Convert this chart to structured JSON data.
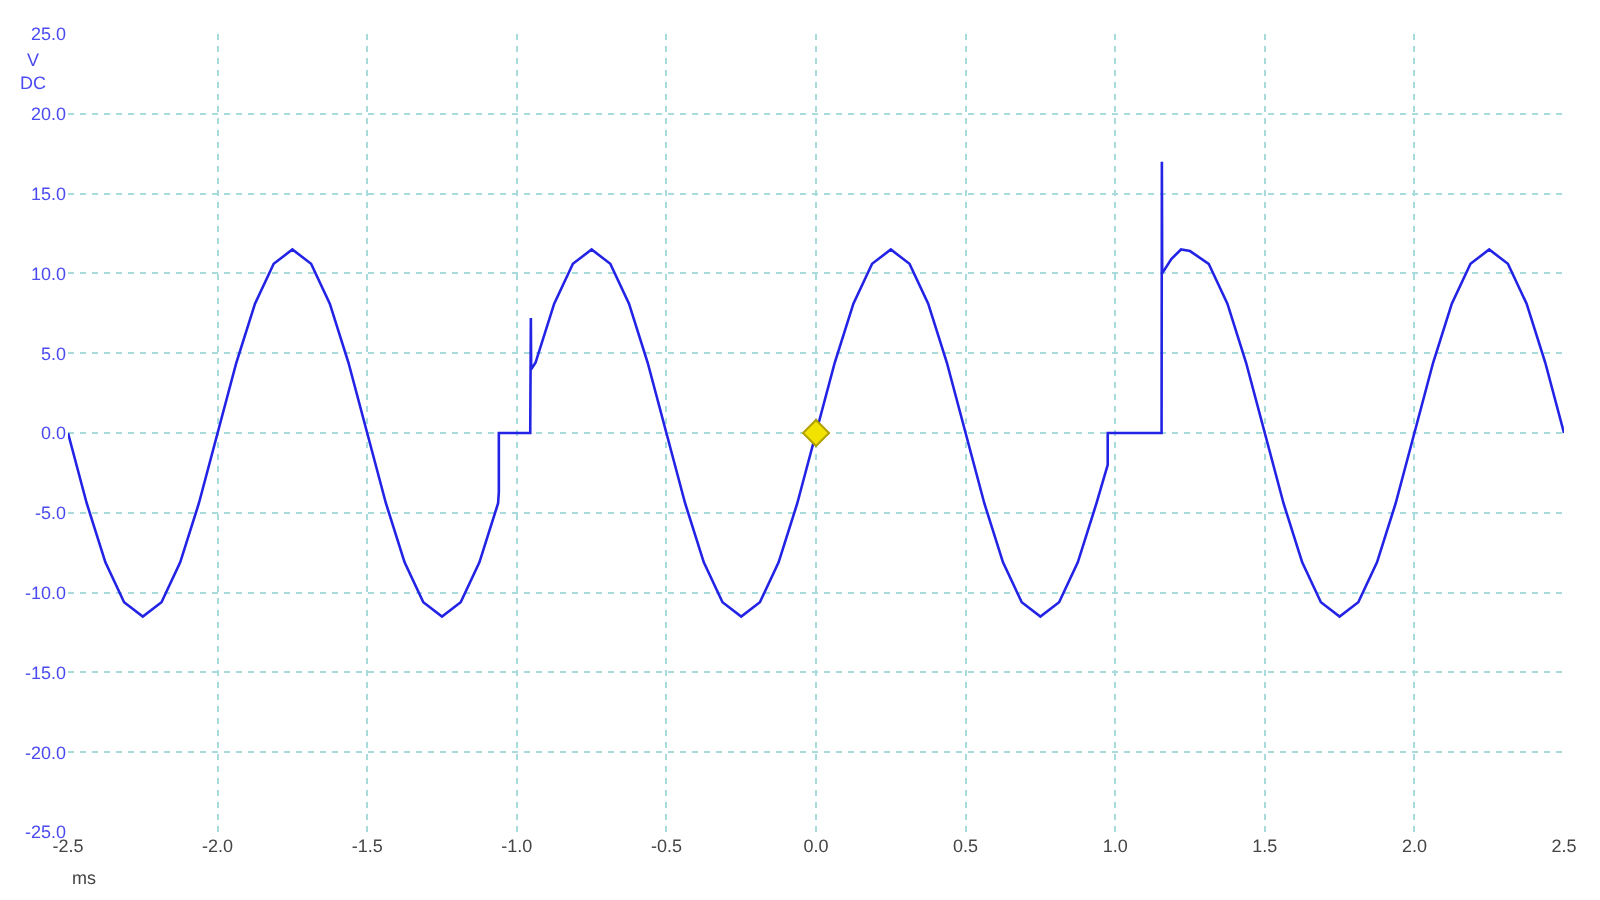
{
  "chart_data": {
    "type": "line",
    "xlabel": "ms",
    "ylabel": "V\nDC",
    "xlim": [
      -2.5,
      2.5
    ],
    "xticks": [
      {
        "value": -2.5,
        "label": "-2.5"
      },
      {
        "value": -2.0,
        "label": "-2.0"
      },
      {
        "value": -1.5,
        "label": "-1.5"
      },
      {
        "value": -1.0,
        "label": "-1.0"
      },
      {
        "value": -0.5,
        "label": "-0.5"
      },
      {
        "value": 0,
        "label": "0.0"
      },
      {
        "value": 0.5,
        "label": "0.5"
      },
      {
        "value": 1.0,
        "label": "1.0"
      },
      {
        "value": 1.5,
        "label": "1.5"
      },
      {
        "value": 2.0,
        "label": "2.0"
      },
      {
        "value": 2.5,
        "label": "2.5"
      }
    ],
    "ylim": [
      -25,
      25
    ],
    "yticks": [
      {
        "value": -25,
        "label": "-25.0"
      },
      {
        "value": -20,
        "label": "-20.0"
      },
      {
        "value": -15,
        "label": "-15.0"
      },
      {
        "value": -10,
        "label": "-10.0"
      },
      {
        "value": -5,
        "label": "-5.0"
      },
      {
        "value": 0,
        "label": "0.0"
      },
      {
        "value": 5,
        "label": "5.0"
      },
      {
        "value": 10,
        "label": "10.0"
      },
      {
        "value": 15,
        "label": "15.0"
      },
      {
        "value": 20,
        "label": "20.0"
      },
      {
        "value": 25,
        "label": "25.0"
      }
    ],
    "grid": true,
    "marker": "none",
    "line_style": "solid",
    "series": [
      {
        "color": "#2323e6",
        "x": [
          -2.5,
          -2.4375,
          -2.375,
          -2.3125,
          -2.25,
          -2.1875,
          -2.125,
          -2.0625,
          -2.0,
          -1.9375,
          -1.875,
          -1.8125,
          -1.75,
          -1.6875,
          -1.625,
          -1.5625,
          -1.5,
          -1.4375,
          -1.375,
          -1.3125,
          -1.25,
          -1.1875,
          -1.125,
          -1.0625,
          -1.06,
          -1.06,
          -0.955,
          -0.955,
          -0.953,
          -0.952,
          -0.9375,
          -0.875,
          -0.8125,
          -0.75,
          -0.6875,
          -0.625,
          -0.5625,
          -0.5,
          -0.4375,
          -0.375,
          -0.3125,
          -0.25,
          -0.1875,
          -0.125,
          -0.0625,
          0,
          0.0625,
          0.125,
          0.1875,
          0.25,
          0.3125,
          0.375,
          0.4375,
          0.5,
          0.5625,
          0.625,
          0.6875,
          0.75,
          0.8125,
          0.875,
          0.9375,
          0.975,
          0.975,
          1.155,
          1.155,
          1.156,
          1.157,
          1.1875,
          1.22,
          1.25,
          1.3125,
          1.375,
          1.4375,
          1.5,
          1.5625,
          1.625,
          1.6875,
          1.75,
          1.8125,
          1.875,
          1.9375,
          2.0,
          2.0625,
          2.125,
          2.1875,
          2.25,
          2.3125,
          2.375,
          2.4375,
          2.5
        ],
        "values": [
          0,
          -4.4,
          -8.1,
          -10.6,
          -11.5,
          -10.6,
          -8.1,
          -4.4,
          0,
          4.4,
          8.1,
          10.6,
          11.5,
          10.6,
          8.1,
          4.4,
          0,
          -4.4,
          -8.1,
          -10.6,
          -11.5,
          -10.6,
          -8.1,
          -4.4,
          -3.7,
          0,
          0,
          0.3,
          7.2,
          4.0,
          4.4,
          8.1,
          10.6,
          11.5,
          10.6,
          8.1,
          4.4,
          0,
          -4.4,
          -8.1,
          -10.6,
          -11.5,
          -10.6,
          -8.1,
          -4.4,
          0,
          4.4,
          8.1,
          10.6,
          11.5,
          10.6,
          8.1,
          4.4,
          0,
          -4.4,
          -8.1,
          -10.6,
          -11.5,
          -10.6,
          -8.1,
          -4.4,
          -2.0,
          0,
          0,
          0.4,
          17.0,
          10.0,
          10.9,
          11.5,
          11.4,
          10.6,
          8.1,
          4.4,
          0,
          -4.4,
          -8.1,
          -10.6,
          -11.5,
          -10.6,
          -8.1,
          -4.4,
          0,
          4.4,
          8.1,
          10.6,
          11.5,
          10.6,
          8.1,
          4.4,
          0
        ]
      },
      {
        "type": "scatter",
        "color": "#f2e200",
        "marker": "diamond",
        "x": [
          0
        ],
        "values": [
          0
        ]
      }
    ]
  }
}
